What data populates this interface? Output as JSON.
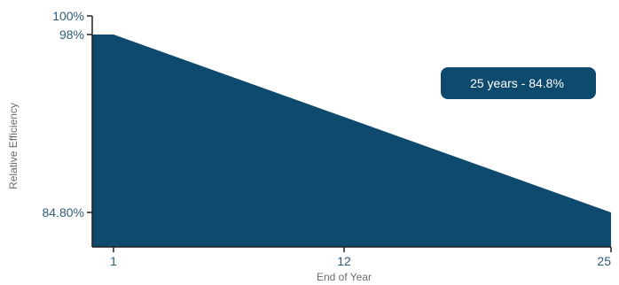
{
  "chart_data": {
    "type": "area",
    "x": [
      0,
      1,
      25
    ],
    "values": [
      98,
      98,
      84.8
    ],
    "xlabel": "End of Year",
    "ylabel": "Relative Efficiency",
    "xlim": [
      0,
      25
    ],
    "ylim": [
      80,
      100
    ],
    "x_ticks": [
      {
        "value": 1,
        "label": "1"
      },
      {
        "value": 12,
        "label": "12"
      },
      {
        "value": 25,
        "label": "25"
      }
    ],
    "y_ticks": [
      {
        "value": 100,
        "label": "100%"
      },
      {
        "value": 98,
        "label": "98%"
      },
      {
        "value": 84.8,
        "label": "84.80%"
      }
    ],
    "annotation": "25 years - 84.8%",
    "grid": false,
    "colors": {
      "fill": "#0d4a6e",
      "axis": "#222222",
      "tick_text": "#2e5b78",
      "title_text": "#6b6b6b",
      "callout_bg": "#0d4a6e"
    }
  }
}
